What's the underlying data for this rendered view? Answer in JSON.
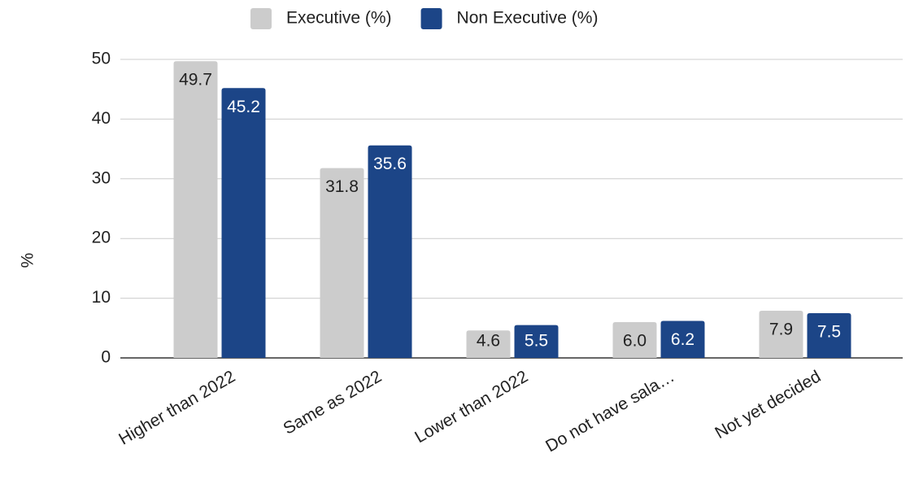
{
  "chart_data": {
    "type": "bar",
    "categories": [
      "Higher than 2022",
      "Same as 2022",
      "Lower than 2022",
      "Do not have sala…",
      "Not yet decided"
    ],
    "series": [
      {
        "name": "Executive (%)",
        "color": "#cccccc",
        "label_color": "#222222",
        "values": [
          49.7,
          31.8,
          4.6,
          6,
          7.9
        ],
        "value_labels": [
          "49.7",
          "31.8",
          "4.6",
          "6.0",
          "7.9"
        ]
      },
      {
        "name": "Non Executive (%)",
        "color": "#1c4587",
        "label_color": "#ffffff",
        "values": [
          45.2,
          35.6,
          5.5,
          6.2,
          7.5
        ],
        "value_labels": [
          "45.2",
          "35.6",
          "5.5",
          "6.2",
          "7.5"
        ]
      }
    ],
    "y_label": "%",
    "ylim": [
      0,
      50
    ],
    "yticks": [
      0,
      10,
      20,
      30,
      40,
      50
    ],
    "grid": true,
    "legend": "top"
  }
}
